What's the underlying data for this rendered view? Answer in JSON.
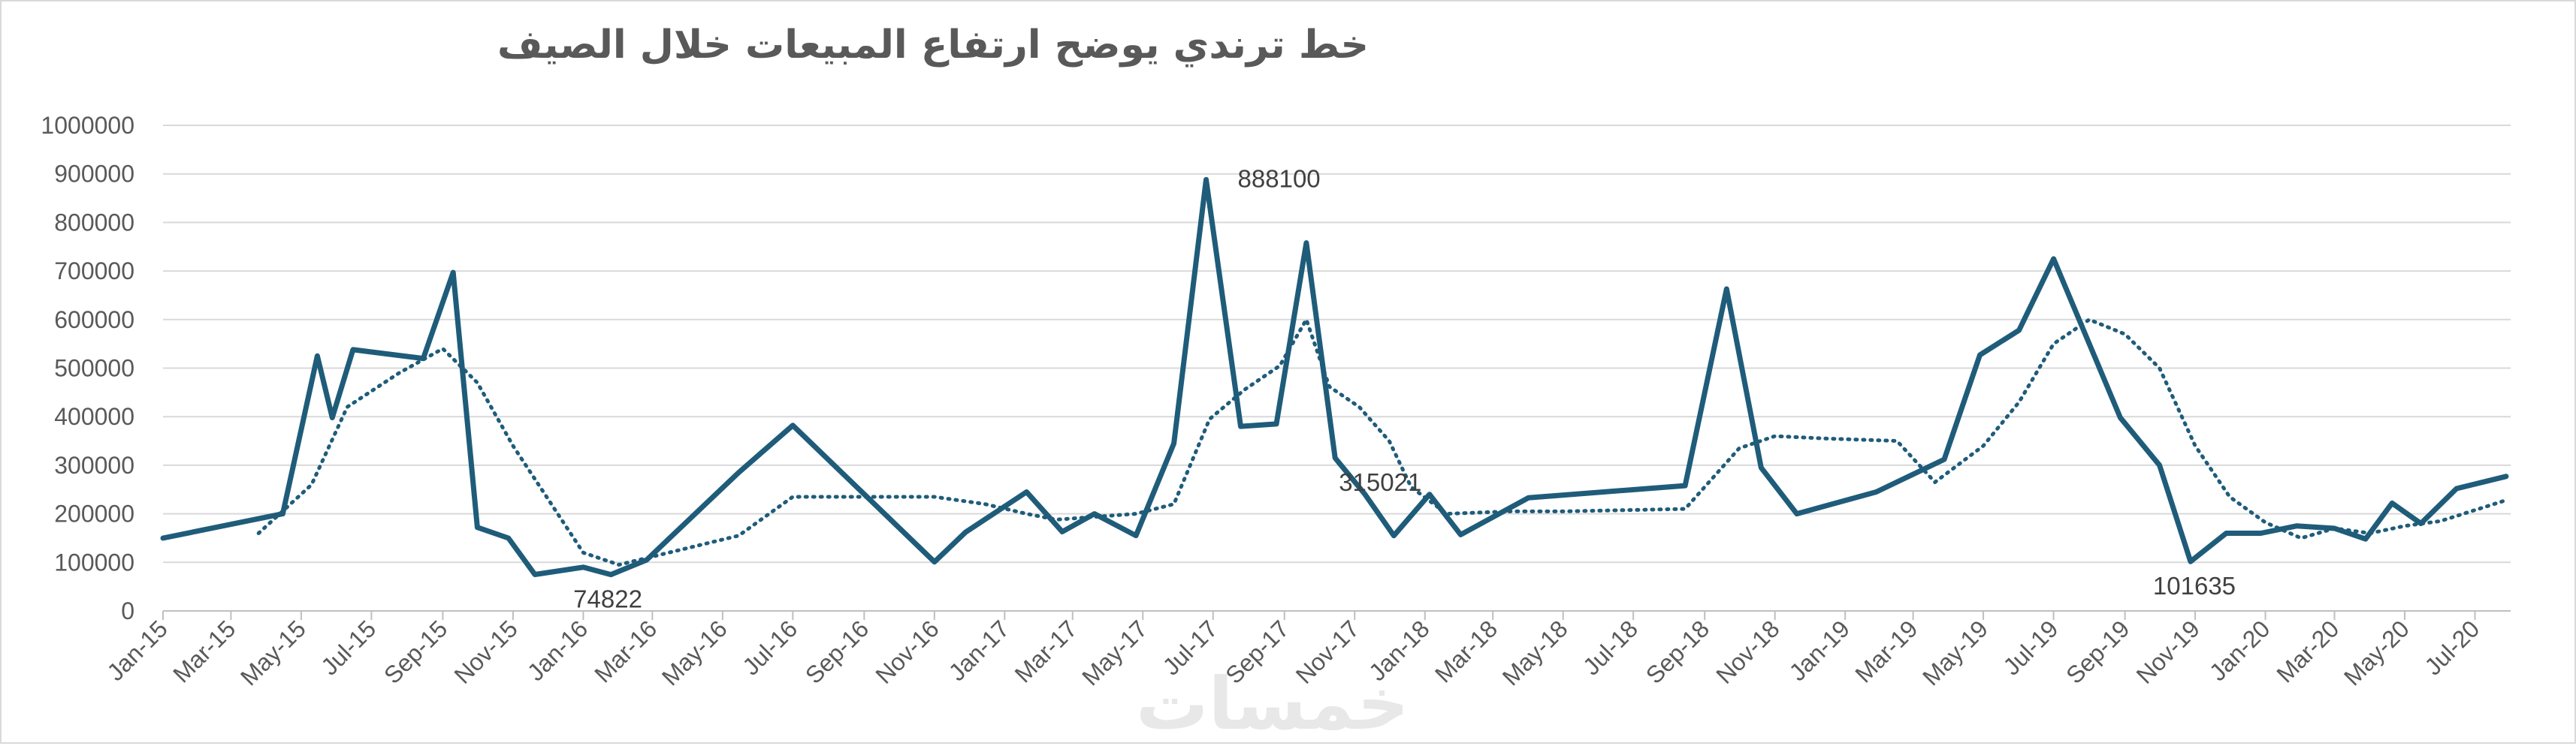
{
  "chart_data": {
    "type": "line",
    "title": "خط ترندي يوضح ارتفاع المبيعات خلال الصيف",
    "watermark": "خمسات",
    "xlabel": "",
    "ylabel": "",
    "ylim": [
      0,
      1000000
    ],
    "yticks": [
      0,
      100000,
      200000,
      300000,
      400000,
      500000,
      600000,
      700000,
      800000,
      900000,
      1000000
    ],
    "xticks": [
      "Jan-15",
      "Mar-15",
      "May-15",
      "Jul-15",
      "Sep-15",
      "Nov-15",
      "Jan-16",
      "Mar-16",
      "May-16",
      "Jul-16",
      "Sep-16",
      "Nov-16",
      "Jan-17",
      "Mar-17",
      "May-17",
      "Jul-17",
      "Sep-17",
      "Nov-17",
      "Jan-18",
      "Mar-18",
      "May-18",
      "Jul-18",
      "Sep-18",
      "Nov-18",
      "Jan-19",
      "Mar-19",
      "May-19",
      "Jul-19",
      "Sep-19",
      "Nov-19",
      "Jan-20",
      "Mar-20",
      "May-20",
      "Jul-20"
    ],
    "grid": true,
    "legend": "none",
    "colors": {
      "series": "#1f5c7a",
      "grid": "#d9d9d9",
      "axis": "#bfbfbf",
      "text": "#595959"
    },
    "series": [
      {
        "style": "solid",
        "points": [
          [
            "2015-01-01",
            150000
          ],
          [
            "2015-04-15",
            200000
          ],
          [
            "2015-05-15",
            525000
          ],
          [
            "2015-05-28",
            398000
          ],
          [
            "2015-06-15",
            538000
          ],
          [
            "2015-08-15",
            520000
          ],
          [
            "2015-09-10",
            697000
          ],
          [
            "2015-10-01",
            172000
          ],
          [
            "2015-10-28",
            150000
          ],
          [
            "2015-11-20",
            75000
          ],
          [
            "2016-01-01",
            90000
          ],
          [
            "2016-01-25",
            74822
          ],
          [
            "2016-02-25",
            105000
          ],
          [
            "2016-05-15",
            285000
          ],
          [
            "2016-07-01",
            382000
          ],
          [
            "2016-11-01",
            101000
          ],
          [
            "2016-11-28",
            162000
          ],
          [
            "2017-01-20",
            245000
          ],
          [
            "2017-02-20",
            163000
          ],
          [
            "2017-03-20",
            200000
          ],
          [
            "2017-04-25",
            155000
          ],
          [
            "2017-05-28",
            345000
          ],
          [
            "2017-06-25",
            888100
          ],
          [
            "2017-07-25",
            380000
          ],
          [
            "2017-08-25",
            385000
          ],
          [
            "2017-09-20",
            758000
          ],
          [
            "2017-10-15",
            315021
          ],
          [
            "2017-11-10",
            240000
          ],
          [
            "2017-12-05",
            155000
          ],
          [
            "2018-01-05",
            240000
          ],
          [
            "2018-02-01",
            157000
          ],
          [
            "2018-04-01",
            233000
          ],
          [
            "2018-08-15",
            258000
          ],
          [
            "2018-09-20",
            663000
          ],
          [
            "2018-10-20",
            295000
          ],
          [
            "2018-11-20",
            200000
          ],
          [
            "2019-01-28",
            245000
          ],
          [
            "2019-03-28",
            312000
          ],
          [
            "2019-04-28",
            527000
          ],
          [
            "2019-06-01",
            578000
          ],
          [
            "2019-07-01",
            725000
          ],
          [
            "2019-08-28",
            398000
          ],
          [
            "2019-10-01",
            300000
          ],
          [
            "2019-10-28",
            101635
          ],
          [
            "2019-11-28",
            160000
          ],
          [
            "2019-12-28",
            160000
          ],
          [
            "2020-01-28",
            175000
          ],
          [
            "2020-03-01",
            170000
          ],
          [
            "2020-03-28",
            148000
          ],
          [
            "2020-04-20",
            222000
          ],
          [
            "2020-05-15",
            180000
          ],
          [
            "2020-06-15",
            252000
          ],
          [
            "2020-07-28",
            277000
          ]
        ]
      },
      {
        "style": "dotted",
        "points": [
          [
            "2015-03-25",
            160000
          ],
          [
            "2015-05-10",
            260000
          ],
          [
            "2015-06-10",
            420000
          ],
          [
            "2015-07-25",
            490000
          ],
          [
            "2015-09-01",
            540000
          ],
          [
            "2015-10-01",
            470000
          ],
          [
            "2015-11-01",
            340000
          ],
          [
            "2016-01-01",
            120000
          ],
          [
            "2016-02-01",
            95000
          ],
          [
            "2016-05-15",
            155000
          ],
          [
            "2016-07-01",
            235000
          ],
          [
            "2016-11-01",
            235000
          ],
          [
            "2016-12-15",
            220000
          ],
          [
            "2017-01-20",
            200000
          ],
          [
            "2017-02-15",
            188000
          ],
          [
            "2017-04-25",
            200000
          ],
          [
            "2017-05-28",
            220000
          ],
          [
            "2017-06-28",
            395000
          ],
          [
            "2017-07-28",
            455000
          ],
          [
            "2017-08-28",
            505000
          ],
          [
            "2017-09-20",
            600000
          ],
          [
            "2017-10-10",
            462000
          ],
          [
            "2017-11-05",
            420000
          ],
          [
            "2017-12-01",
            350000
          ],
          [
            "2017-12-20",
            255000
          ],
          [
            "2018-01-20",
            200000
          ],
          [
            "2018-03-15",
            205000
          ],
          [
            "2018-04-30",
            205000
          ],
          [
            "2018-08-15",
            210000
          ],
          [
            "2018-10-01",
            335000
          ],
          [
            "2018-11-01",
            360000
          ],
          [
            "2018-12-15",
            355000
          ],
          [
            "2019-02-15",
            350000
          ],
          [
            "2019-03-20",
            265000
          ],
          [
            "2019-05-01",
            340000
          ],
          [
            "2019-06-01",
            430000
          ],
          [
            "2019-07-01",
            550000
          ],
          [
            "2019-08-01",
            600000
          ],
          [
            "2019-09-01",
            570000
          ],
          [
            "2019-10-01",
            500000
          ],
          [
            "2019-11-01",
            340000
          ],
          [
            "2019-12-01",
            235000
          ],
          [
            "2020-01-01",
            182000
          ],
          [
            "2020-02-01",
            150000
          ],
          [
            "2020-03-01",
            170000
          ],
          [
            "2020-04-01",
            160000
          ],
          [
            "2020-05-01",
            175000
          ],
          [
            "2020-06-01",
            185000
          ],
          [
            "2020-07-28",
            228000
          ]
        ]
      }
    ],
    "data_labels": [
      {
        "date": "2017-06-25",
        "value": 888100,
        "text": "888100",
        "position": "right"
      },
      {
        "date": "2017-10-15",
        "value": 315021,
        "text": "315021",
        "position": "below"
      },
      {
        "date": "2016-01-25",
        "value": 74822,
        "text": "74822",
        "position": "below"
      },
      {
        "date": "2019-10-28",
        "value": 101635,
        "text": "101635",
        "position": "below"
      }
    ]
  }
}
